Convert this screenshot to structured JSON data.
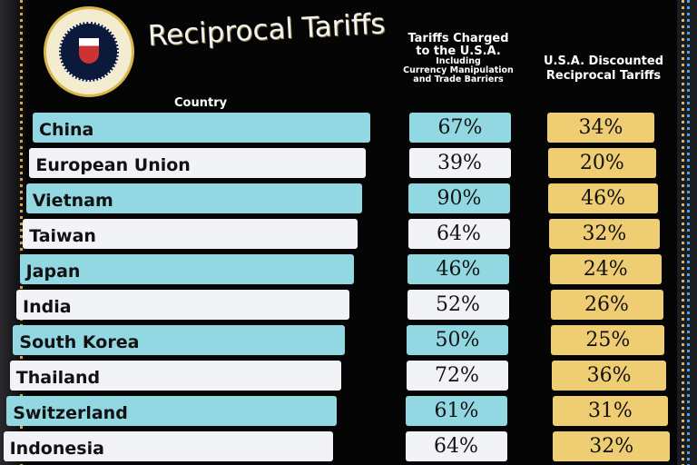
{
  "title": "Reciprocal Tariffs",
  "seal_text": "SEAL OF THE PRESIDENT OF THE UNITED STATES",
  "headers": {
    "country": "Country",
    "charged_line1": "Tariffs Charged",
    "charged_line2": "to the U.S.A.",
    "charged_line3": "Including",
    "charged_line4": "Currency Manipulation",
    "charged_line5": "and Trade Barriers",
    "discounted_line1": "U.S.A. Discounted",
    "discounted_line2": "Reciprocal Tariffs"
  },
  "colors": {
    "row_alt": "#92d8e2",
    "row": "#f2f3f7",
    "discounted": "#efcd72",
    "background": "#050506"
  },
  "rows": [
    {
      "country": "China",
      "charged": "67%",
      "discounted": "34%"
    },
    {
      "country": "European Union",
      "charged": "39%",
      "discounted": "20%"
    },
    {
      "country": "Vietnam",
      "charged": "90%",
      "discounted": "46%"
    },
    {
      "country": "Taiwan",
      "charged": "64%",
      "discounted": "32%"
    },
    {
      "country": "Japan",
      "charged": "46%",
      "discounted": "24%"
    },
    {
      "country": "India",
      "charged": "52%",
      "discounted": "26%"
    },
    {
      "country": "South Korea",
      "charged": "50%",
      "discounted": "25%"
    },
    {
      "country": "Thailand",
      "charged": "72%",
      "discounted": "36%"
    },
    {
      "country": "Switzerland",
      "charged": "61%",
      "discounted": "31%"
    },
    {
      "country": "Indonesia",
      "charged": "64%",
      "discounted": "32%"
    }
  ]
}
